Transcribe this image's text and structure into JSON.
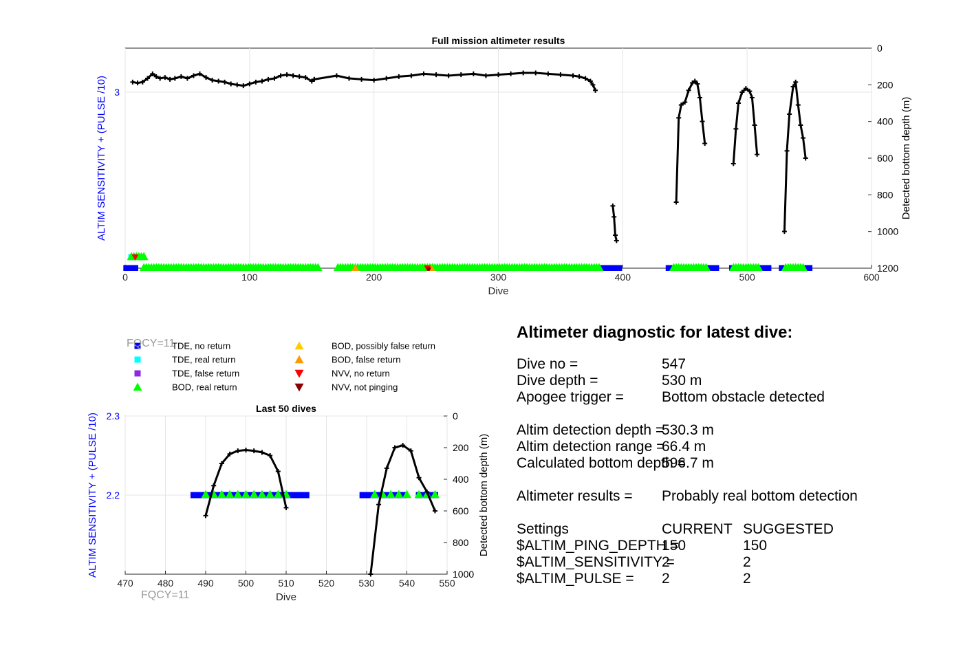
{
  "chart_data": [
    {
      "type": "scatter",
      "title": "Full mission altimeter results",
      "xlabel": "Dive",
      "ylabel_left": "ALTIM SENSITIVITY + (PULSE /10)",
      "ylabel_right": "Detected bottom depth (m)",
      "xlim": [
        0,
        600
      ],
      "ylim_left": [
        2.2,
        3.2
      ],
      "ylim_right_reversed": [
        0,
        1200
      ],
      "xticks": [
        "0",
        "100",
        "200",
        "300",
        "400",
        "500",
        "600"
      ],
      "yticks_left": [
        "3"
      ],
      "yticks_right": [
        "0",
        "200",
        "400",
        "600",
        "800",
        "1000",
        "1200"
      ],
      "grid": true,
      "series": [
        {
          "name": "Detected bottom depth",
          "kind": "line",
          "x": [
            6,
            10,
            14,
            18,
            22,
            25,
            28,
            32,
            36,
            40,
            45,
            50,
            55,
            60,
            65,
            70,
            75,
            80,
            85,
            90,
            95,
            100,
            105,
            110,
            115,
            120,
            125,
            130,
            135,
            140,
            145,
            150,
            152
          ],
          "depth": [
            185,
            190,
            185,
            165,
            140,
            155,
            165,
            160,
            170,
            165,
            155,
            165,
            150,
            140,
            160,
            175,
            180,
            185,
            195,
            200,
            205,
            195,
            185,
            180,
            170,
            165,
            150,
            145,
            150,
            155,
            160,
            180,
            170
          ],
          "segments": [
            {
              "x": [
                152,
                170,
                180,
                190,
                200,
                210,
                220,
                230,
                240,
                250,
                260,
                270,
                280,
                290,
                300,
                310,
                320,
                330,
                340,
                350,
                360,
                365,
                370,
                374,
                376,
                378
              ],
              "depth": [
                170,
                150,
                165,
                170,
                175,
                165,
                155,
                150,
                140,
                145,
                150,
                145,
                140,
                150,
                145,
                140,
                135,
                135,
                140,
                145,
                150,
                155,
                165,
                180,
                200,
                230
              ]
            },
            {
              "x": [
                392,
                393,
                394,
                395
              ],
              "depth": [
                860,
                920,
                1020,
                1050
              ]
            },
            {
              "x": [
                443,
                445,
                447,
                450,
                453,
                456,
                458,
                460,
                462,
                464,
                466
              ],
              "depth": [
                840,
                380,
                310,
                295,
                230,
                190,
                180,
                195,
                270,
                400,
                520
              ]
            },
            {
              "x": [
                489,
                491,
                493,
                496,
                499,
                502,
                504,
                506,
                508
              ],
              "depth": [
                630,
                440,
                300,
                240,
                220,
                235,
                270,
                420,
                580
              ]
            },
            {
              "x": [
                530,
                532,
                534,
                537,
                539,
                541,
                543,
                545,
                547
              ],
              "depth": [
                1000,
                560,
                360,
                210,
                185,
                310,
                420,
                490,
                600
              ]
            }
          ]
        },
        {
          "name": "TDE, no return",
          "kind": "markers",
          "ranges": [
            [
              1,
              8
            ],
            [
              382,
              397
            ],
            [
              437,
              475
            ],
            [
              488,
              517
            ],
            [
              528,
              550
            ]
          ],
          "y": 2.2,
          "extra": [
            {
              "x": [
                1,
                8
              ],
              "y": 3.25
            }
          ]
        },
        {
          "name": "BOD, real return",
          "kind": "markers",
          "ranges": [
            [
              15,
              155
            ],
            [
              171,
              381
            ],
            [
              441,
              467
            ],
            [
              489,
              509
            ],
            [
              531,
              545
            ]
          ],
          "y": 2.2,
          "extra": [
            {
              "x": [
                5,
                16
              ],
              "y": 2.25
            }
          ]
        },
        {
          "name": "TDE, real return",
          "kind": "markers",
          "points": [
            [
              5,
              2.25
            ]
          ]
        },
        {
          "name": "BOD, false return",
          "kind": "markers",
          "points": [
            [
              185,
              2.2
            ],
            [
              246,
              2.2
            ]
          ]
        },
        {
          "name": "NVV, no return",
          "kind": "markers",
          "points": [
            [
              8,
              2.25
            ],
            [
              243,
              2.2
            ]
          ]
        },
        {
          "name": "NVV, not pinging",
          "kind": "markers",
          "points": [
            [
              244,
              2.2
            ]
          ]
        }
      ]
    },
    {
      "type": "scatter",
      "title": "Last 50 dives",
      "xlabel": "Dive",
      "ylabel_left": "ALTIM SENSITIVITY + (PULSE /10)",
      "ylabel_right": "Detected bottom depth (m)",
      "xlim": [
        470,
        550
      ],
      "ylim_left": [
        2.1,
        2.3
      ],
      "ylim_right_reversed": [
        0,
        1000
      ],
      "xticks": [
        "470",
        "480",
        "490",
        "500",
        "510",
        "520",
        "530",
        "540",
        "550"
      ],
      "yticks_left": [
        "2.2",
        "2.3"
      ],
      "yticks_right": [
        "0",
        "200",
        "400",
        "600",
        "800",
        "1000"
      ],
      "grid": true,
      "series": [
        {
          "name": "Detected bottom depth",
          "kind": "line",
          "segments": [
            {
              "x": [
                490,
                492,
                494,
                496,
                498,
                500,
                502,
                504,
                506,
                508,
                510
              ],
              "depth": [
                630,
                440,
                300,
                240,
                220,
                215,
                220,
                230,
                250,
                350,
                580
              ]
            },
            {
              "x": [
                531,
                533,
                535,
                537,
                539,
                541,
                543,
                545,
                547
              ],
              "depth": [
                1000,
                560,
                330,
                200,
                185,
                220,
                390,
                480,
                600
              ]
            }
          ]
        },
        {
          "name": "TDE, no return",
          "kind": "markers",
          "y": 2.2,
          "x": [
            487,
            488,
            489,
            490,
            491,
            492,
            493,
            494,
            495,
            496,
            497,
            498,
            499,
            500,
            501,
            502,
            503,
            504,
            505,
            506,
            507,
            508,
            509,
            510,
            511,
            512,
            513,
            514,
            515,
            529,
            530,
            531,
            532,
            533,
            534,
            535,
            536,
            537,
            538,
            539,
            543,
            544,
            545,
            546,
            547
          ]
        },
        {
          "name": "BOD, real return",
          "kind": "markers",
          "y": 2.2,
          "x": [
            490,
            492,
            494,
            496,
            498,
            500,
            502,
            504,
            506,
            508,
            510,
            532,
            534,
            536,
            538,
            540,
            543,
            545,
            547
          ]
        }
      ]
    }
  ],
  "legend": [
    {
      "label": "TDE, no return",
      "marker": "square",
      "color": "#0000ff"
    },
    {
      "label": "TDE, real return",
      "marker": "square",
      "color": "#00ffff"
    },
    {
      "label": "TDE, false return",
      "marker": "square",
      "color": "#8a2be2"
    },
    {
      "label": "BOD, real return",
      "marker": "triangle-up",
      "color": "#00ff00"
    },
    {
      "label": "BOD, possibly false return",
      "marker": "triangle-up",
      "color": "#ffcc00"
    },
    {
      "label": "BOD, false return",
      "marker": "triangle-up",
      "color": "#ff9900"
    },
    {
      "label": "NVV, no return",
      "marker": "triangle-down",
      "color": "#ff0000"
    },
    {
      "label": "NVV, not pinging",
      "marker": "triangle-down",
      "color": "#8b0000"
    }
  ],
  "fqcy_labels": [
    "FQCY=11",
    "FQCY=11"
  ],
  "colors": {
    "axis_left": "#0000ff",
    "line": "#000000",
    "grid": "#e5e5e5",
    "fqcy": "#999999"
  },
  "diagnostic": {
    "title": "Altimeter diagnostic for latest dive:",
    "rows": [
      {
        "label": "Dive no =",
        "value": "547"
      },
      {
        "label": "Dive depth =",
        "value": "530 m"
      },
      {
        "label": "Apogee trigger =",
        "value": "Bottom obstacle detected"
      },
      {
        "label": "Altim detection depth =",
        "value": "530.3 m"
      },
      {
        "label": "Altim detection range =",
        "value": "66.4 m"
      },
      {
        "label": "Calculated bottom depth =",
        "value": "596.7 m"
      },
      {
        "label": "Altimeter results =",
        "value": "Probably real bottom detection"
      }
    ],
    "settings": {
      "header": [
        "Settings",
        "CURRENT",
        "SUGGESTED"
      ],
      "rows": [
        {
          "name": "$ALTIM_PING_DEPTH =",
          "current": "150",
          "suggested": "150"
        },
        {
          "name": "$ALTIM_SENSITIVITY =",
          "current": "2",
          "suggested": "2"
        },
        {
          "name": "$ALTIM_PULSE =",
          "current": "2",
          "suggested": "2"
        }
      ]
    }
  }
}
